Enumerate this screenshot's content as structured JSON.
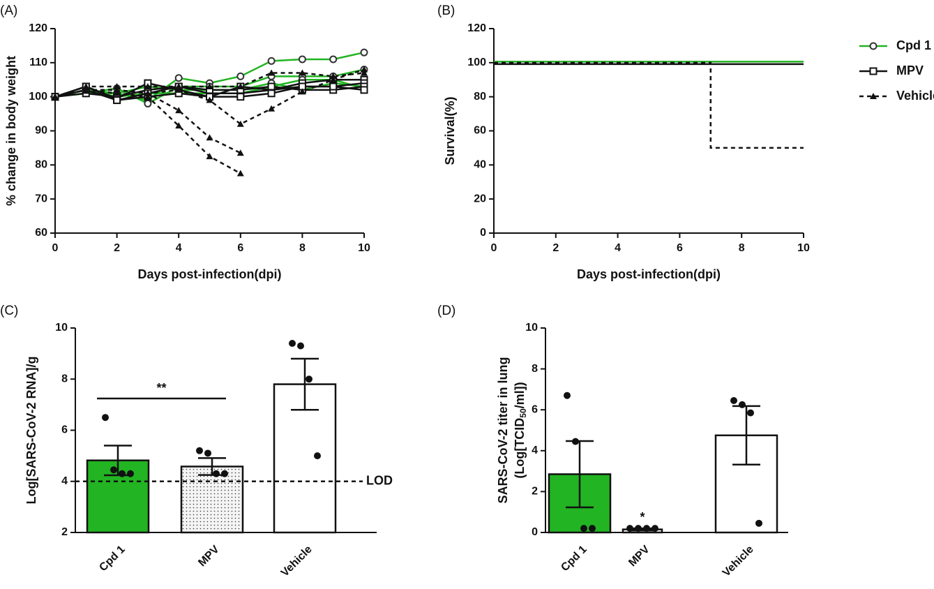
{
  "chart_data": [
    {
      "type": "line",
      "label": "(A)",
      "xlabel": "Days post-infection(dpi)",
      "ylabel": "% change in body weight",
      "x": [
        0,
        1,
        2,
        3,
        4,
        5,
        6,
        7,
        8,
        9,
        10
      ],
      "xlim": [
        0,
        10
      ],
      "xticks": [
        0,
        2,
        4,
        6,
        8,
        10
      ],
      "ylim": [
        60,
        120
      ],
      "yticks": [
        60,
        70,
        80,
        90,
        100,
        110,
        120
      ],
      "series": [
        {
          "name": "Cpd 1",
          "color": "#22b422",
          "marker": "circle",
          "dashed": false,
          "values": [
            [
              100,
              102,
              101,
              99,
              105.5,
              104,
              106,
              110.5,
              111,
              111,
              113
            ],
            [
              100,
              101,
              102.5,
              98,
              103,
              103,
              103,
              106,
              106,
              106,
              108
            ],
            [
              100,
              101,
              101,
              103,
              102,
              102,
              102,
              104,
              102,
              104,
              103
            ],
            [
              100,
              102,
              100,
              101,
              101,
              101,
              101,
              103,
              105,
              105,
              102.5
            ]
          ]
        },
        {
          "name": "MPV",
          "color": "#111111",
          "marker": "square",
          "dashed": false,
          "values": [
            [
              100,
              103,
              99.5,
              104,
              102,
              100,
              103,
              102,
              104,
              105,
              105
            ],
            [
              100,
              101,
              100,
              102,
              103,
              101,
              101,
              102,
              103,
              103,
              104
            ],
            [
              100,
              102,
              99,
              101,
              103,
              102,
              102,
              103,
              102,
              102,
              103
            ],
            [
              100,
              103,
              99,
              100,
              101,
              100,
              100,
              101,
              103,
              103,
              102
            ]
          ]
        },
        {
          "name": "Vehicle",
          "color": "#111111",
          "marker": "triangle",
          "dashed": true,
          "values": [
            [
              100,
              102,
              102,
              101,
              96,
              88,
              83.5,
              null,
              null,
              null,
              null
            ],
            [
              100,
              102,
              101,
              100,
              91.5,
              82.5,
              77.5,
              null,
              null,
              null,
              null
            ],
            [
              100,
              102,
              102,
              101,
              102,
              99,
              92,
              96.5,
              101.5,
              105,
              108
            ],
            [
              100,
              103,
              103,
              103,
              103,
              103,
              103,
              107,
              107,
              106,
              107
            ]
          ]
        }
      ]
    },
    {
      "type": "step",
      "label": "(B)",
      "xlabel": "Days post-infection(dpi)",
      "ylabel": "Survival(%)",
      "x": [
        0,
        7,
        10
      ],
      "xlim": [
        0,
        10
      ],
      "xticks": [
        0,
        2,
        4,
        6,
        8,
        10
      ],
      "ylim": [
        0,
        120
      ],
      "yticks": [
        0,
        20,
        40,
        60,
        80,
        100,
        120
      ],
      "series": [
        {
          "color": "#22b422",
          "dashed": false,
          "values": [
            100,
            100,
            100
          ]
        },
        {
          "color": "#111111",
          "dashed": false,
          "values": [
            100,
            100,
            100
          ]
        },
        {
          "color": "#111111",
          "dashed": true,
          "values": [
            100,
            50,
            50
          ]
        }
      ]
    },
    {
      "type": "bar",
      "label": "(C)",
      "ylabel": "Log[SARS-CoV-2 RNA]/g",
      "categories": [
        "Cpd 1",
        "MPV",
        "Vehicle"
      ],
      "values": [
        4.82,
        4.58,
        7.8
      ],
      "errors": [
        0.58,
        0.33,
        1.0
      ],
      "points": [
        [
          6.5,
          4.45,
          4.3,
          4.3
        ],
        [
          5.2,
          5.1,
          4.3,
          4.3
        ],
        [
          9.4,
          9.3,
          8.0,
          5.0
        ]
      ],
      "colors": [
        "#22b422",
        "#f4f4f4",
        "#ffffff"
      ],
      "hatch": [
        false,
        true,
        false
      ],
      "ylim": [
        2,
        10
      ],
      "yticks": [
        2,
        4,
        6,
        8,
        10
      ],
      "lod": 4,
      "lod_label": "LOD",
      "annotation": "**"
    },
    {
      "type": "bar",
      "label": "(D)",
      "ylabel": [
        "SARS-CoV-2 titer in lung",
        "(Log[TCID",
        "50",
        "/ml])"
      ],
      "categories": [
        "Cpd 1",
        "MPV",
        "Vehicle"
      ],
      "values": [
        2.85,
        0.15,
        4.75
      ],
      "errors": [
        1.62,
        0.05,
        1.43
      ],
      "points": [
        [
          6.7,
          4.45,
          0.2,
          0.2
        ],
        [
          0.2,
          0.2,
          0.2,
          0.2
        ],
        [
          6.45,
          6.25,
          5.85,
          0.45
        ]
      ],
      "colors": [
        "#22b422",
        "#ffffff",
        "#ffffff"
      ],
      "hatch": [
        false,
        false,
        false
      ],
      "ylim": [
        0,
        10
      ],
      "yticks": [
        0,
        2,
        4,
        6,
        8,
        10
      ],
      "annotation": "*"
    }
  ]
}
